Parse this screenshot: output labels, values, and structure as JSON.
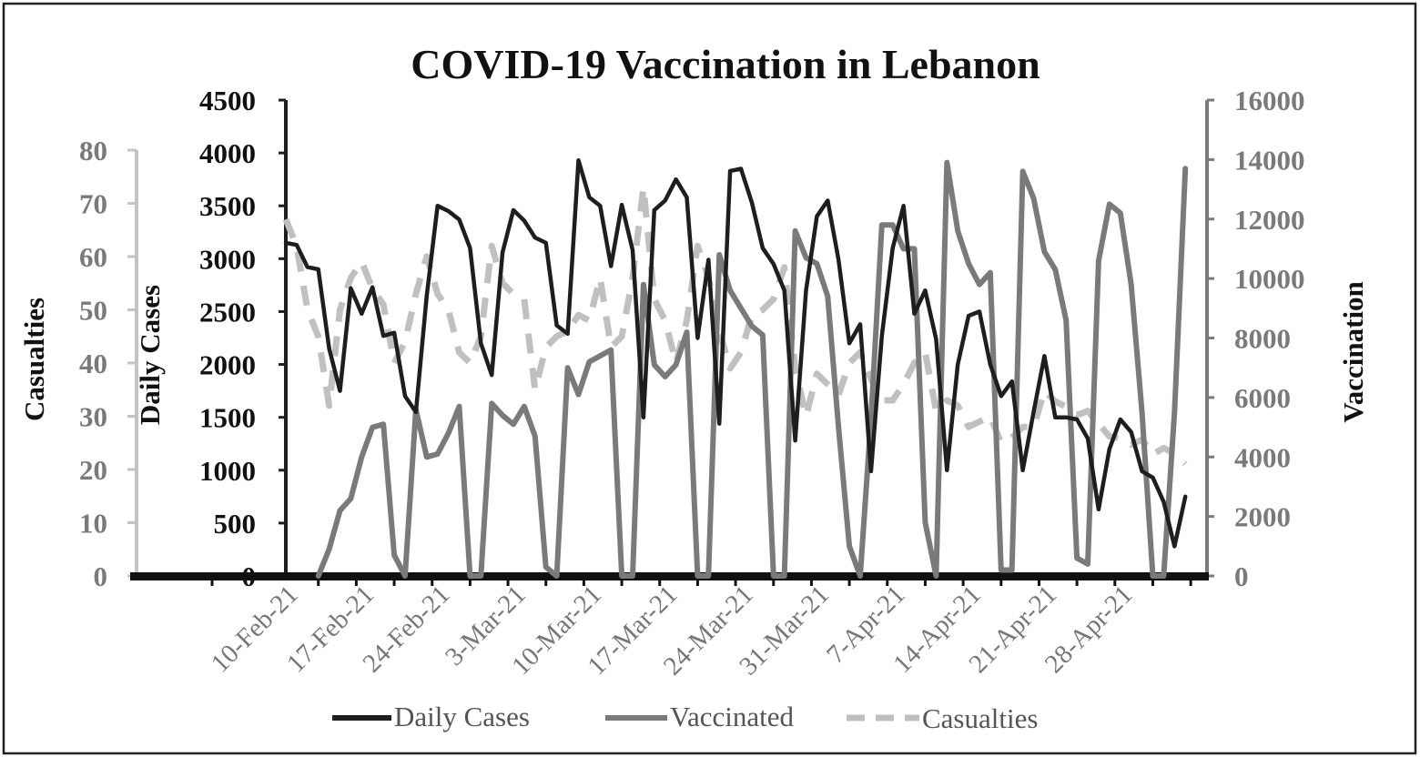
{
  "chart_data": {
    "type": "line",
    "title": "COVID-19 Vaccination in Lebanon",
    "axes": {
      "casualties": {
        "label": "Casualties",
        "range": [
          0,
          80
        ],
        "ticks": [
          "0",
          "10",
          "20",
          "30",
          "40",
          "50",
          "60",
          "70",
          "80"
        ]
      },
      "daily_cases": {
        "label": "Daily Cases",
        "range": [
          0,
          4500
        ],
        "ticks": [
          "0",
          "500",
          "1000",
          "1500",
          "2000",
          "2500",
          "3000",
          "3500",
          "4000",
          "4500"
        ]
      },
      "vaccination": {
        "label": "Vaccination",
        "range": [
          0,
          16000
        ],
        "ticks": [
          "0",
          "2000",
          "4000",
          "6000",
          "8000",
          "10000",
          "12000",
          "14000",
          "16000"
        ]
      }
    },
    "x_tick_labels": [
      "10-Feb-21",
      "17-Feb-21",
      "24-Feb-21",
      "3-Mar-21",
      "10-Mar-21",
      "17-Mar-21",
      "24-Mar-21",
      "31-Mar-21",
      "7-Apr-21",
      "14-Apr-21",
      "21-Apr-21",
      "28-Apr-21"
    ],
    "x_tick_day_index": [
      0,
      7,
      14,
      21,
      28,
      35,
      42,
      49,
      56,
      63,
      70,
      77
    ],
    "day_range": [
      -1,
      84
    ],
    "series": [
      {
        "name": "Daily Cases",
        "axis": "daily_cases",
        "color": "#1e1e1e",
        "dash": "solid",
        "points": [
          [
            -1,
            3150
          ],
          [
            0,
            3130
          ],
          [
            1,
            2920
          ],
          [
            2,
            2900
          ],
          [
            3,
            2150
          ],
          [
            4,
            1750
          ],
          [
            5,
            2720
          ],
          [
            6,
            2480
          ],
          [
            7,
            2730
          ],
          [
            8,
            2270
          ],
          [
            9,
            2300
          ],
          [
            10,
            1700
          ],
          [
            11,
            1550
          ],
          [
            12,
            2650
          ],
          [
            13,
            3500
          ],
          [
            14,
            3450
          ],
          [
            15,
            3370
          ],
          [
            16,
            3100
          ],
          [
            17,
            2200
          ],
          [
            18,
            1900
          ],
          [
            19,
            3060
          ],
          [
            20,
            3460
          ],
          [
            21,
            3360
          ],
          [
            22,
            3200
          ],
          [
            23,
            3150
          ],
          [
            24,
            2370
          ],
          [
            25,
            2290
          ],
          [
            26,
            3930
          ],
          [
            27,
            3580
          ],
          [
            28,
            3500
          ],
          [
            29,
            2930
          ],
          [
            30,
            3510
          ],
          [
            31,
            3080
          ],
          [
            32,
            1500
          ],
          [
            33,
            3460
          ],
          [
            34,
            3550
          ],
          [
            35,
            3750
          ],
          [
            36,
            3580
          ],
          [
            37,
            2250
          ],
          [
            38,
            2990
          ],
          [
            39,
            1440
          ],
          [
            40,
            3830
          ],
          [
            41,
            3850
          ],
          [
            42,
            3530
          ],
          [
            43,
            3100
          ],
          [
            44,
            2950
          ],
          [
            45,
            2700
          ],
          [
            46,
            1280
          ],
          [
            47,
            2700
          ],
          [
            48,
            3400
          ],
          [
            49,
            3550
          ],
          [
            50,
            2990
          ],
          [
            51,
            2200
          ],
          [
            52,
            2380
          ],
          [
            53,
            990
          ],
          [
            54,
            2270
          ],
          [
            55,
            3100
          ],
          [
            56,
            3500
          ],
          [
            57,
            2480
          ],
          [
            58,
            2700
          ],
          [
            59,
            2240
          ],
          [
            60,
            1000
          ],
          [
            61,
            2000
          ],
          [
            62,
            2460
          ],
          [
            63,
            2500
          ],
          [
            64,
            2000
          ],
          [
            65,
            1700
          ],
          [
            66,
            1840
          ],
          [
            67,
            1000
          ],
          [
            68,
            1550
          ],
          [
            69,
            2080
          ],
          [
            70,
            1500
          ],
          [
            71,
            1500
          ],
          [
            72,
            1480
          ],
          [
            73,
            1300
          ],
          [
            74,
            630
          ],
          [
            75,
            1200
          ],
          [
            76,
            1480
          ],
          [
            77,
            1360
          ],
          [
            78,
            990
          ],
          [
            79,
            930
          ],
          [
            80,
            700
          ],
          [
            81,
            280
          ],
          [
            82,
            750
          ]
        ]
      },
      {
        "name": "Vaccinated",
        "axis": "vaccination",
        "color": "#7a7a7a",
        "dash": "solid",
        "points": [
          [
            2,
            0
          ],
          [
            3,
            900
          ],
          [
            4,
            2200
          ],
          [
            5,
            2600
          ],
          [
            6,
            4000
          ],
          [
            7,
            5000
          ],
          [
            8,
            5100
          ],
          [
            9,
            700
          ],
          [
            10,
            0
          ],
          [
            11,
            5600
          ],
          [
            12,
            4000
          ],
          [
            13,
            4100
          ],
          [
            14,
            4800
          ],
          [
            15,
            5700
          ],
          [
            16,
            0
          ],
          [
            17,
            0
          ],
          [
            18,
            5800
          ],
          [
            19,
            5400
          ],
          [
            20,
            5100
          ],
          [
            21,
            5700
          ],
          [
            22,
            4700
          ],
          [
            23,
            300
          ],
          [
            24,
            0
          ],
          [
            25,
            7000
          ],
          [
            26,
            6100
          ],
          [
            27,
            7200
          ],
          [
            28,
            7400
          ],
          [
            29,
            7600
          ],
          [
            30,
            0
          ],
          [
            31,
            0
          ],
          [
            32,
            9800
          ],
          [
            33,
            7100
          ],
          [
            34,
            6700
          ],
          [
            35,
            7100
          ],
          [
            36,
            8200
          ],
          [
            37,
            0
          ],
          [
            38,
            0
          ],
          [
            39,
            10800
          ],
          [
            40,
            9600
          ],
          [
            41,
            9000
          ],
          [
            42,
            8400
          ],
          [
            43,
            8100
          ],
          [
            44,
            0
          ],
          [
            45,
            0
          ],
          [
            46,
            11600
          ],
          [
            47,
            10700
          ],
          [
            48,
            10500
          ],
          [
            49,
            9400
          ],
          [
            50,
            5000
          ],
          [
            51,
            1000
          ],
          [
            52,
            0
          ],
          [
            53,
            5300
          ],
          [
            54,
            11800
          ],
          [
            55,
            11800
          ],
          [
            56,
            11000
          ],
          [
            57,
            11000
          ],
          [
            58,
            1800
          ],
          [
            59,
            0
          ],
          [
            60,
            13900
          ],
          [
            61,
            11600
          ],
          [
            62,
            10500
          ],
          [
            63,
            9800
          ],
          [
            64,
            10200
          ],
          [
            65,
            200
          ],
          [
            66,
            200
          ],
          [
            67,
            13600
          ],
          [
            68,
            12700
          ],
          [
            69,
            10900
          ],
          [
            70,
            10300
          ],
          [
            71,
            8600
          ],
          [
            72,
            600
          ],
          [
            73,
            400
          ],
          [
            74,
            10600
          ],
          [
            75,
            12500
          ],
          [
            76,
            12200
          ],
          [
            77,
            9800
          ],
          [
            78,
            5500
          ],
          [
            79,
            0
          ],
          [
            80,
            0
          ],
          [
            81,
            5500
          ],
          [
            82,
            13700
          ]
        ]
      },
      {
        "name": "Casualties",
        "axis": "casualties",
        "color": "#c0c0c0",
        "dash": "dashed",
        "points": [
          [
            -1,
            67
          ],
          [
            0,
            62
          ],
          [
            1,
            50
          ],
          [
            2,
            45
          ],
          [
            3,
            32
          ],
          [
            4,
            50
          ],
          [
            5,
            56
          ],
          [
            6,
            59
          ],
          [
            7,
            54
          ],
          [
            8,
            51
          ],
          [
            9,
            40
          ],
          [
            10,
            44
          ],
          [
            11,
            53
          ],
          [
            12,
            60
          ],
          [
            13,
            53
          ],
          [
            14,
            50
          ],
          [
            15,
            42
          ],
          [
            16,
            40
          ],
          [
            17,
            45
          ],
          [
            18,
            62
          ],
          [
            19,
            55
          ],
          [
            20,
            53
          ],
          [
            21,
            52
          ],
          [
            22,
            35
          ],
          [
            23,
            43
          ],
          [
            24,
            45
          ],
          [
            25,
            46
          ],
          [
            26,
            49
          ],
          [
            27,
            48
          ],
          [
            28,
            56
          ],
          [
            29,
            43
          ],
          [
            30,
            45
          ],
          [
            31,
            56
          ],
          [
            32,
            73
          ],
          [
            33,
            52
          ],
          [
            34,
            48
          ],
          [
            35,
            40
          ],
          [
            36,
            48
          ],
          [
            37,
            62
          ],
          [
            38,
            56
          ],
          [
            39,
            46
          ],
          [
            40,
            39
          ],
          [
            41,
            42
          ],
          [
            42,
            49
          ],
          [
            43,
            50
          ],
          [
            44,
            52
          ],
          [
            45,
            58
          ],
          [
            46,
            39
          ],
          [
            47,
            30
          ],
          [
            48,
            38
          ],
          [
            49,
            36
          ],
          [
            50,
            34
          ],
          [
            51,
            40
          ],
          [
            52,
            42
          ],
          [
            53,
            37
          ],
          [
            54,
            33
          ],
          [
            55,
            33
          ],
          [
            56,
            36
          ],
          [
            57,
            40
          ],
          [
            58,
            42
          ],
          [
            59,
            31
          ],
          [
            60,
            33
          ],
          [
            61,
            32
          ],
          [
            62,
            28
          ],
          [
            63,
            29
          ],
          [
            64,
            30
          ],
          [
            65,
            25
          ],
          [
            66,
            26
          ],
          [
            67,
            28
          ],
          [
            68,
            28
          ]
        ],
        "note_tail_scaled_to_daily": true,
        "tail_points_daily_units": [
          [
            69,
            1750
          ],
          [
            70,
            1650
          ],
          [
            71,
            1600
          ],
          [
            72,
            1520
          ],
          [
            73,
            1560
          ],
          [
            74,
            1440
          ],
          [
            75,
            1320
          ],
          [
            76,
            1300
          ],
          [
            77,
            1240
          ],
          [
            78,
            1290
          ],
          [
            79,
            1150
          ],
          [
            80,
            1210
          ],
          [
            81,
            1160
          ],
          [
            82,
            1060
          ]
        ]
      }
    ],
    "legend": [
      {
        "label": "Daily Cases",
        "color": "#1e1e1e",
        "style": "solid"
      },
      {
        "label": "Vaccinated",
        "color": "#7a7a7a",
        "style": "solid"
      },
      {
        "label": "Casualties",
        "color": "#c0c0c0",
        "style": "dashed"
      }
    ],
    "legend_position": "bottom"
  }
}
